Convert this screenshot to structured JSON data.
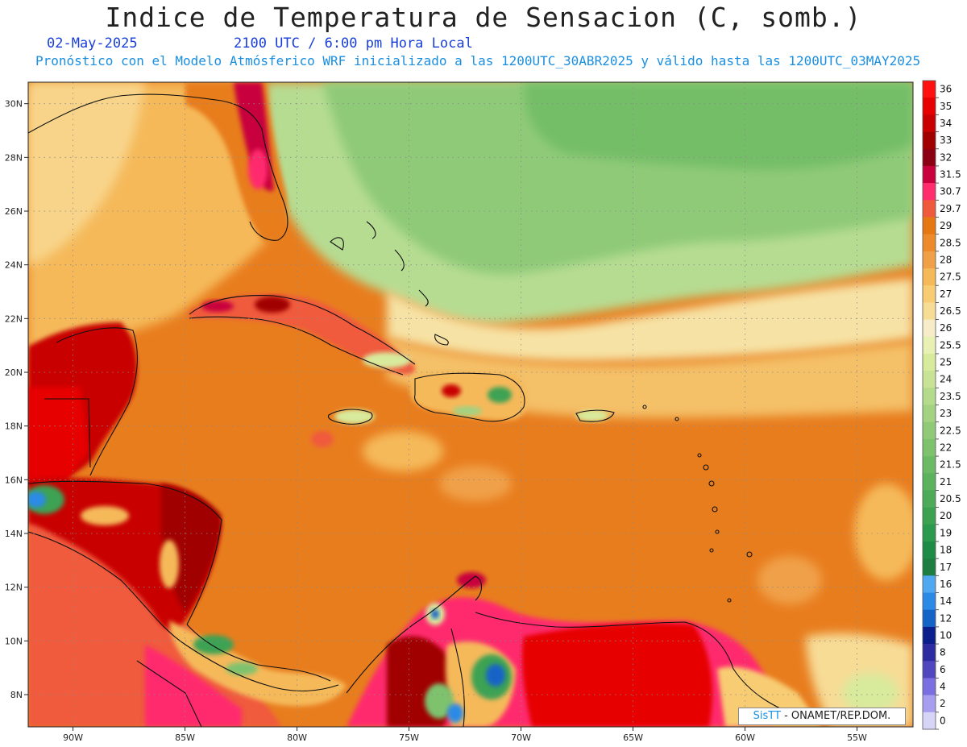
{
  "title": "Indice de Temperatura de Sensacion (C, somb.)",
  "date": "02-May-2025",
  "valid_time": "2100 UTC / 6:00 pm Hora Local",
  "forecast_info": "Pronóstico con el Modelo Atmósferico WRF inicializado a las 1200UTC_30ABR2025 y válido hasta las  1200UTC_03MAY2025",
  "credit": {
    "brand": "SisTT",
    "text": " - ONAMET/REP.DOM."
  },
  "map": {
    "lon_range": [
      -92,
      -52.5
    ],
    "lat_range": [
      6.8,
      30.8
    ],
    "lon_ticks": [
      {
        "value": -90,
        "label": "90W"
      },
      {
        "value": -85,
        "label": "85W"
      },
      {
        "value": -80,
        "label": "80W"
      },
      {
        "value": -75,
        "label": "75W"
      },
      {
        "value": -70,
        "label": "70W"
      },
      {
        "value": -65,
        "label": "65W"
      },
      {
        "value": -60,
        "label": "60W"
      },
      {
        "value": -55,
        "label": "55W"
      }
    ],
    "lat_ticks": [
      {
        "value": 8,
        "label": "8N"
      },
      {
        "value": 10,
        "label": "10N"
      },
      {
        "value": 12,
        "label": "12N"
      },
      {
        "value": 14,
        "label": "14N"
      },
      {
        "value": 16,
        "label": "16N"
      },
      {
        "value": 18,
        "label": "18N"
      },
      {
        "value": 20,
        "label": "20N"
      },
      {
        "value": 22,
        "label": "22N"
      },
      {
        "value": 24,
        "label": "24N"
      },
      {
        "value": 26,
        "label": "26N"
      },
      {
        "value": 28,
        "label": "28N"
      },
      {
        "value": 30,
        "label": "30N"
      }
    ],
    "grid": true
  },
  "colorbar": {
    "levels": [
      {
        "label": "36",
        "color": "#ff1010"
      },
      {
        "label": "35",
        "color": "#e60000"
      },
      {
        "label": "34",
        "color": "#c80000"
      },
      {
        "label": "33",
        "color": "#a00000"
      },
      {
        "label": "32",
        "color": "#8c0014"
      },
      {
        "label": "31.5",
        "color": "#c8003c"
      },
      {
        "label": "30.7",
        "color": "#ff2c6e"
      },
      {
        "label": "29.7",
        "color": "#f05a3c"
      },
      {
        "label": "29",
        "color": "#e67814"
      },
      {
        "label": "28.5",
        "color": "#ec8a2c"
      },
      {
        "label": "28",
        "color": "#f0a048"
      },
      {
        "label": "27.5",
        "color": "#f5b95a"
      },
      {
        "label": "27",
        "color": "#f8cc72"
      },
      {
        "label": "26.5",
        "color": "#f7dc96"
      },
      {
        "label": "26",
        "color": "#f6ecc8"
      },
      {
        "label": "25.5",
        "color": "#e8f0b4"
      },
      {
        "label": "25",
        "color": "#d8ea9c"
      },
      {
        "label": "24",
        "color": "#c8e296"
      },
      {
        "label": "23.5",
        "color": "#b4da8c"
      },
      {
        "label": "23",
        "color": "#a2d282"
      },
      {
        "label": "22.5",
        "color": "#90ca78"
      },
      {
        "label": "22",
        "color": "#7ec26e"
      },
      {
        "label": "21.5",
        "color": "#6cba66"
      },
      {
        "label": "21",
        "color": "#5cb25e"
      },
      {
        "label": "20.5",
        "color": "#4caa58"
      },
      {
        "label": "20",
        "color": "#3ca252"
      },
      {
        "label": "19",
        "color": "#2c9a4c"
      },
      {
        "label": "18",
        "color": "#1e8c46"
      },
      {
        "label": "17",
        "color": "#1e7e42"
      },
      {
        "label": "16",
        "color": "#50a8f0"
      },
      {
        "label": "14",
        "color": "#2a8ae6"
      },
      {
        "label": "12",
        "color": "#1464c8"
      },
      {
        "label": "10",
        "color": "#0a1e8c"
      },
      {
        "label": "8",
        "color": "#2c2ca0"
      },
      {
        "label": "6",
        "color": "#5046be"
      },
      {
        "label": "4",
        "color": "#7a6ee0"
      },
      {
        "label": "2",
        "color": "#a89ef0"
      },
      {
        "label": "0",
        "color": "#d8d4f8"
      }
    ]
  },
  "colors": {
    "ocean_warm": "#e87d1e",
    "ocean_hot": "#f05a3c",
    "gulf_mild": "#f5b95a",
    "atlantic_cool": "#a8d68a",
    "atlantic_cooler": "#7ec26e",
    "land_hot": "#c80000",
    "land_extreme": "#e60000"
  }
}
